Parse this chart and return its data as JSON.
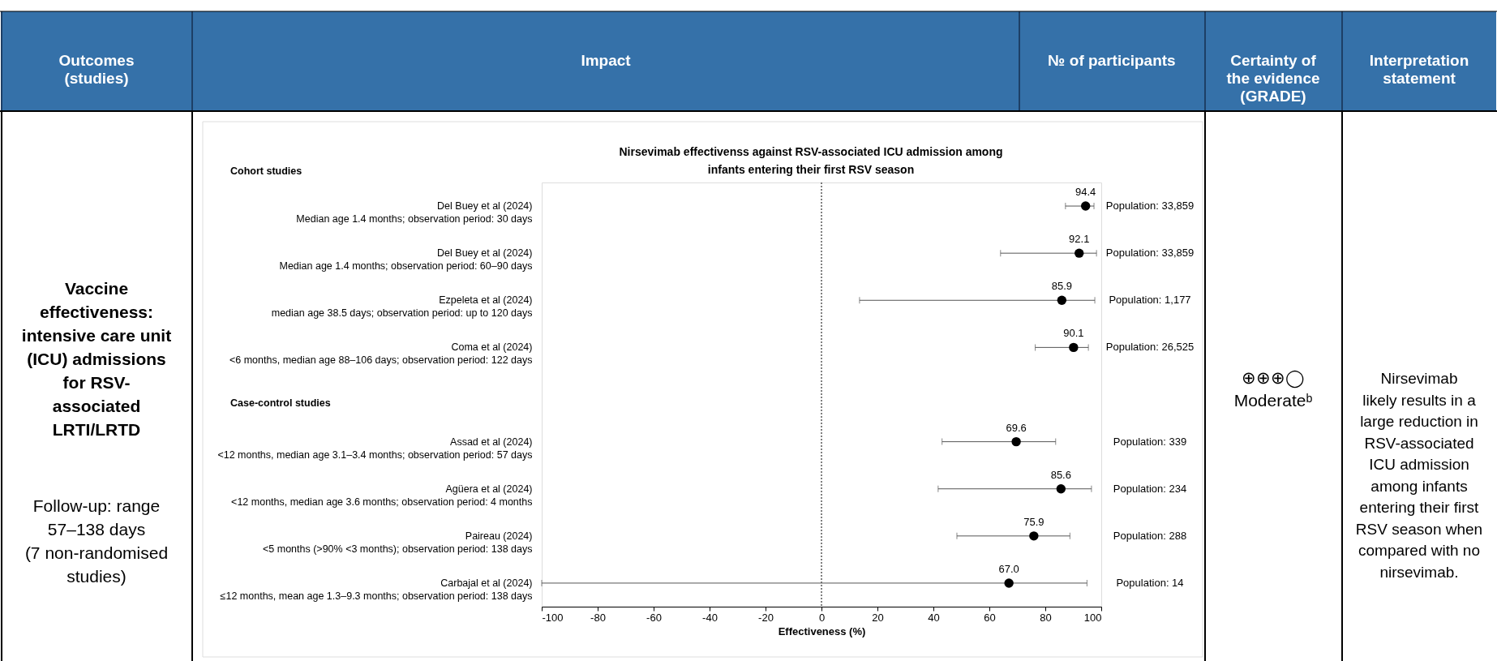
{
  "chart_data": {
    "type": "scatter",
    "title": "Nirsevimab effectivenss against RSV-associated ICU admission among\ninfants entering their first RSV season",
    "xlabel": "Effectiveness (%)",
    "categories": [
      "Del Buey et al (2024)\nMedian age 1.4 months; observation period:  30 days",
      "Del Buey et al (2024)\nMedian age 1.4 months; observation period: 60–90 days",
      "Ezpeleta et al (2024)\nmedian age 38.5 days; observation period: up to 120 days",
      "Coma et al (2024)\n<6 months, median age 88–106 days; observation period: 122 days",
      null,
      "Assad et al (2024)\n<12 months, median age 3.1–3.4 months; observation period: 57 days",
      "Agüera et al (2024)\n<12 months, median age 3.6 months; observation period: 4 months",
      "Paireau (2024)\n<5 months (>90% <3 months); observation period: 138 days",
      "Carbajal et al (2024)\n≤12 months, mean age 1.3–9.3 months; observation period: 138 days"
    ],
    "series": [
      {
        "color": "#000000",
        "values": [
          94.4,
          92.1,
          85.9,
          90.1,
          null,
          69.6,
          85.6,
          75.9,
          67.0
        ],
        "value_labels": [
          "94.4",
          "92.1",
          "85.9",
          "90.1",
          null,
          "69.6",
          "85.6",
          "75.9",
          "67.0"
        ],
        "errors": [
          [
            87.2,
            97.4
          ],
          [
            64.0,
            98.3
          ],
          [
            13.6,
            97.7
          ],
          [
            76.4,
            95.4
          ],
          null,
          [
            43.1,
            83.7
          ],
          [
            41.7,
            96.5
          ],
          [
            48.4,
            88.8
          ],
          [
            -100,
            94.9
          ]
        ]
      }
    ],
    "orientation": "horizontal",
    "marker": "circle",
    "grid": false,
    "xlim": [
      -100,
      100
    ],
    "xticks": [
      -100,
      -80,
      -60,
      -40,
      -20,
      0,
      20,
      40,
      60,
      80,
      100
    ],
    "ref_lines": [
      {
        "axis": "x",
        "value": 0,
        "line_style": "dotted",
        "color": "#000000"
      }
    ],
    "annotations": [
      "Outcomes\n(studies)",
      "Impact",
      "№ of participants",
      "Certainty of\nthe evidence\n(GRADE)",
      "Interpretation\nstatement",
      "Vaccine\neffectiveness:\nintensive care unit\n(ICU) admissions\nfor RSV-\nassociated\nLRTI/LRTD",
      "Follow-up: range\n57–138 days\n(7 non-randomised\nstudies)",
      "⊕⊕⊕◯\nModerateᵇ",
      "Nirsevimab\nlikely results in a\nlarge reduction in\nRSV-associated\nICU admission\namong infants\nentering their first\nRSV season when\ncompared with no\nnirsevimab.",
      "Cohort studies",
      "Case-control studies",
      "Population: 33,859",
      "Population: 33,859",
      "Population: 1,177",
      "Population: 26,525",
      "Population: 339",
      "Population: 234",
      "Population: 288",
      "Population: 14"
    ]
  }
}
